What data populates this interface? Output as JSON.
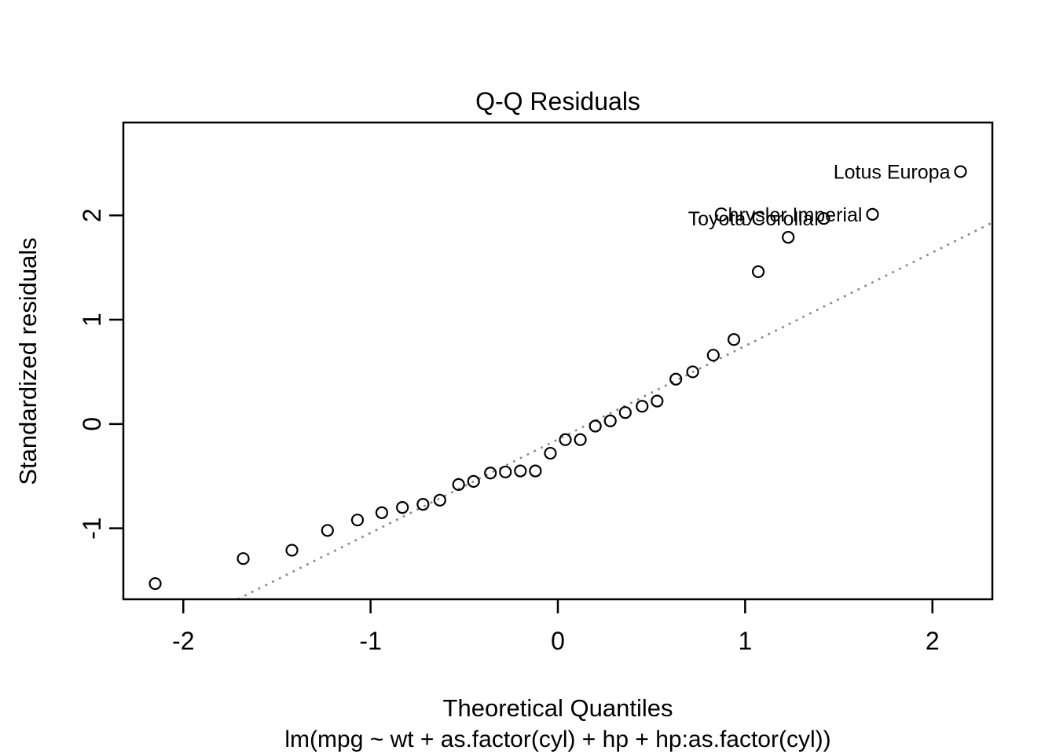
{
  "colors": {
    "foreground": "#000000",
    "reference_line": "#888888",
    "background": "#ffffff"
  },
  "chart_data": {
    "type": "scatter",
    "title": "Q-Q Residuals",
    "xlabel": "Theoretical Quantiles",
    "sub_caption": "lm(mpg ~ wt + as.factor(cyl) + hp + hp:as.factor(cyl))",
    "ylabel": "Standardized residuals",
    "xlim": [
      -2.32,
      2.32
    ],
    "ylim": [
      -1.68,
      2.89
    ],
    "x_ticks": [
      -2,
      -1,
      0,
      1,
      2
    ],
    "y_ticks": [
      -1,
      0,
      1,
      2
    ],
    "grid": false,
    "legend": false,
    "marker": "open-circle",
    "points": [
      [
        -2.15,
        -1.53
      ],
      [
        -1.68,
        -1.29
      ],
      [
        -1.42,
        -1.21
      ],
      [
        -1.23,
        -1.02
      ],
      [
        -1.07,
        -0.92
      ],
      [
        -0.94,
        -0.85
      ],
      [
        -0.83,
        -0.8
      ],
      [
        -0.72,
        -0.77
      ],
      [
        -0.63,
        -0.73
      ],
      [
        -0.53,
        -0.58
      ],
      [
        -0.45,
        -0.55
      ],
      [
        -0.36,
        -0.47
      ],
      [
        -0.28,
        -0.46
      ],
      [
        -0.2,
        -0.45
      ],
      [
        -0.12,
        -0.45
      ],
      [
        -0.04,
        -0.28
      ],
      [
        0.04,
        -0.15
      ],
      [
        0.12,
        -0.15
      ],
      [
        0.2,
        -0.02
      ],
      [
        0.28,
        0.03
      ],
      [
        0.36,
        0.11
      ],
      [
        0.45,
        0.17
      ],
      [
        0.53,
        0.22
      ],
      [
        0.63,
        0.43
      ],
      [
        0.72,
        0.5
      ],
      [
        0.83,
        0.66
      ],
      [
        0.94,
        0.81
      ],
      [
        1.07,
        1.46
      ],
      [
        1.23,
        1.79
      ],
      [
        1.42,
        1.97
      ],
      [
        1.68,
        2.01
      ],
      [
        2.15,
        2.42
      ]
    ],
    "point_labels": [
      {
        "label": "Toyota Corolla",
        "x": 1.42,
        "y": 1.97
      },
      {
        "label": "Chrysler Imperial",
        "x": 1.68,
        "y": 2.01
      },
      {
        "label": "Lotus Europa",
        "x": 2.15,
        "y": 2.42
      }
    ],
    "ref_line": {
      "style": "dotted",
      "x1": -1.71,
      "y1": -1.68,
      "x2": 2.33,
      "y2": 1.94
    }
  }
}
